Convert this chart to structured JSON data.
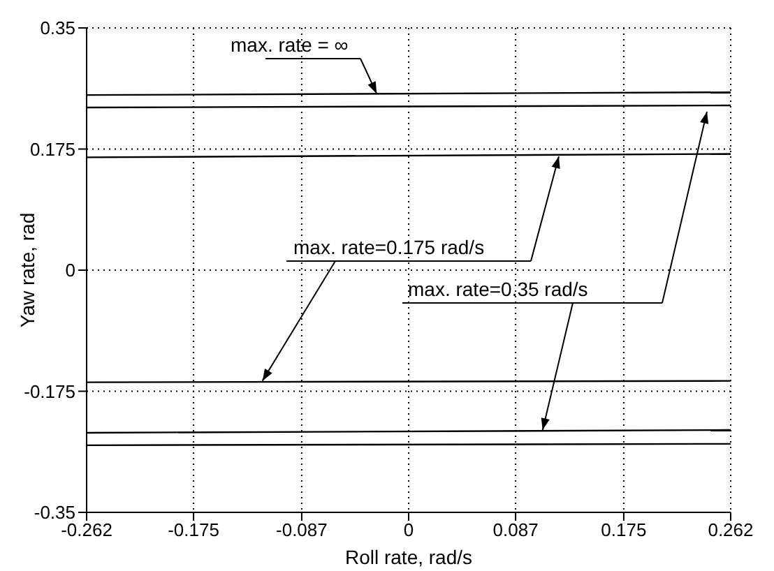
{
  "chart_data": {
    "type": "line",
    "xlabel": "Roll rate, rad/s",
    "ylabel": "Yaw rate, rad",
    "x": [
      -0.262,
      0.262
    ],
    "series": [
      {
        "color": "#000000",
        "values": [
          0.253,
          0.257
        ]
      },
      {
        "color": "#000000",
        "values": [
          0.235,
          0.238
        ]
      },
      {
        "color": "#000000",
        "values": [
          0.163,
          0.168
        ]
      },
      {
        "color": "#000000",
        "values": [
          -0.162,
          -0.16
        ]
      },
      {
        "color": "#000000",
        "values": [
          -0.235,
          -0.231
        ]
      },
      {
        "color": "#000000",
        "values": [
          -0.253,
          -0.251
        ]
      }
    ],
    "annotations": [
      {
        "text": "max. rate =  ∞",
        "x": -0.026,
        "y": 0.255
      },
      {
        "text": "max. rate=0.175 rad/s",
        "x": -0.119,
        "y": -0.16
      },
      {
        "text": "max. rate=0.35 rad/s",
        "x": 0.109,
        "y": -0.231
      }
    ],
    "xlim": [
      -0.262,
      0.262
    ],
    "xticks": [
      -0.262,
      -0.175,
      -0.087,
      0,
      0.087,
      0.175,
      0.262
    ],
    "ylim": [
      -0.35,
      0.35
    ],
    "yticks": [
      -0.35,
      -0.175,
      0,
      0.175,
      0.35
    ],
    "grid": true,
    "line_style": "solid",
    "marker": "none"
  }
}
